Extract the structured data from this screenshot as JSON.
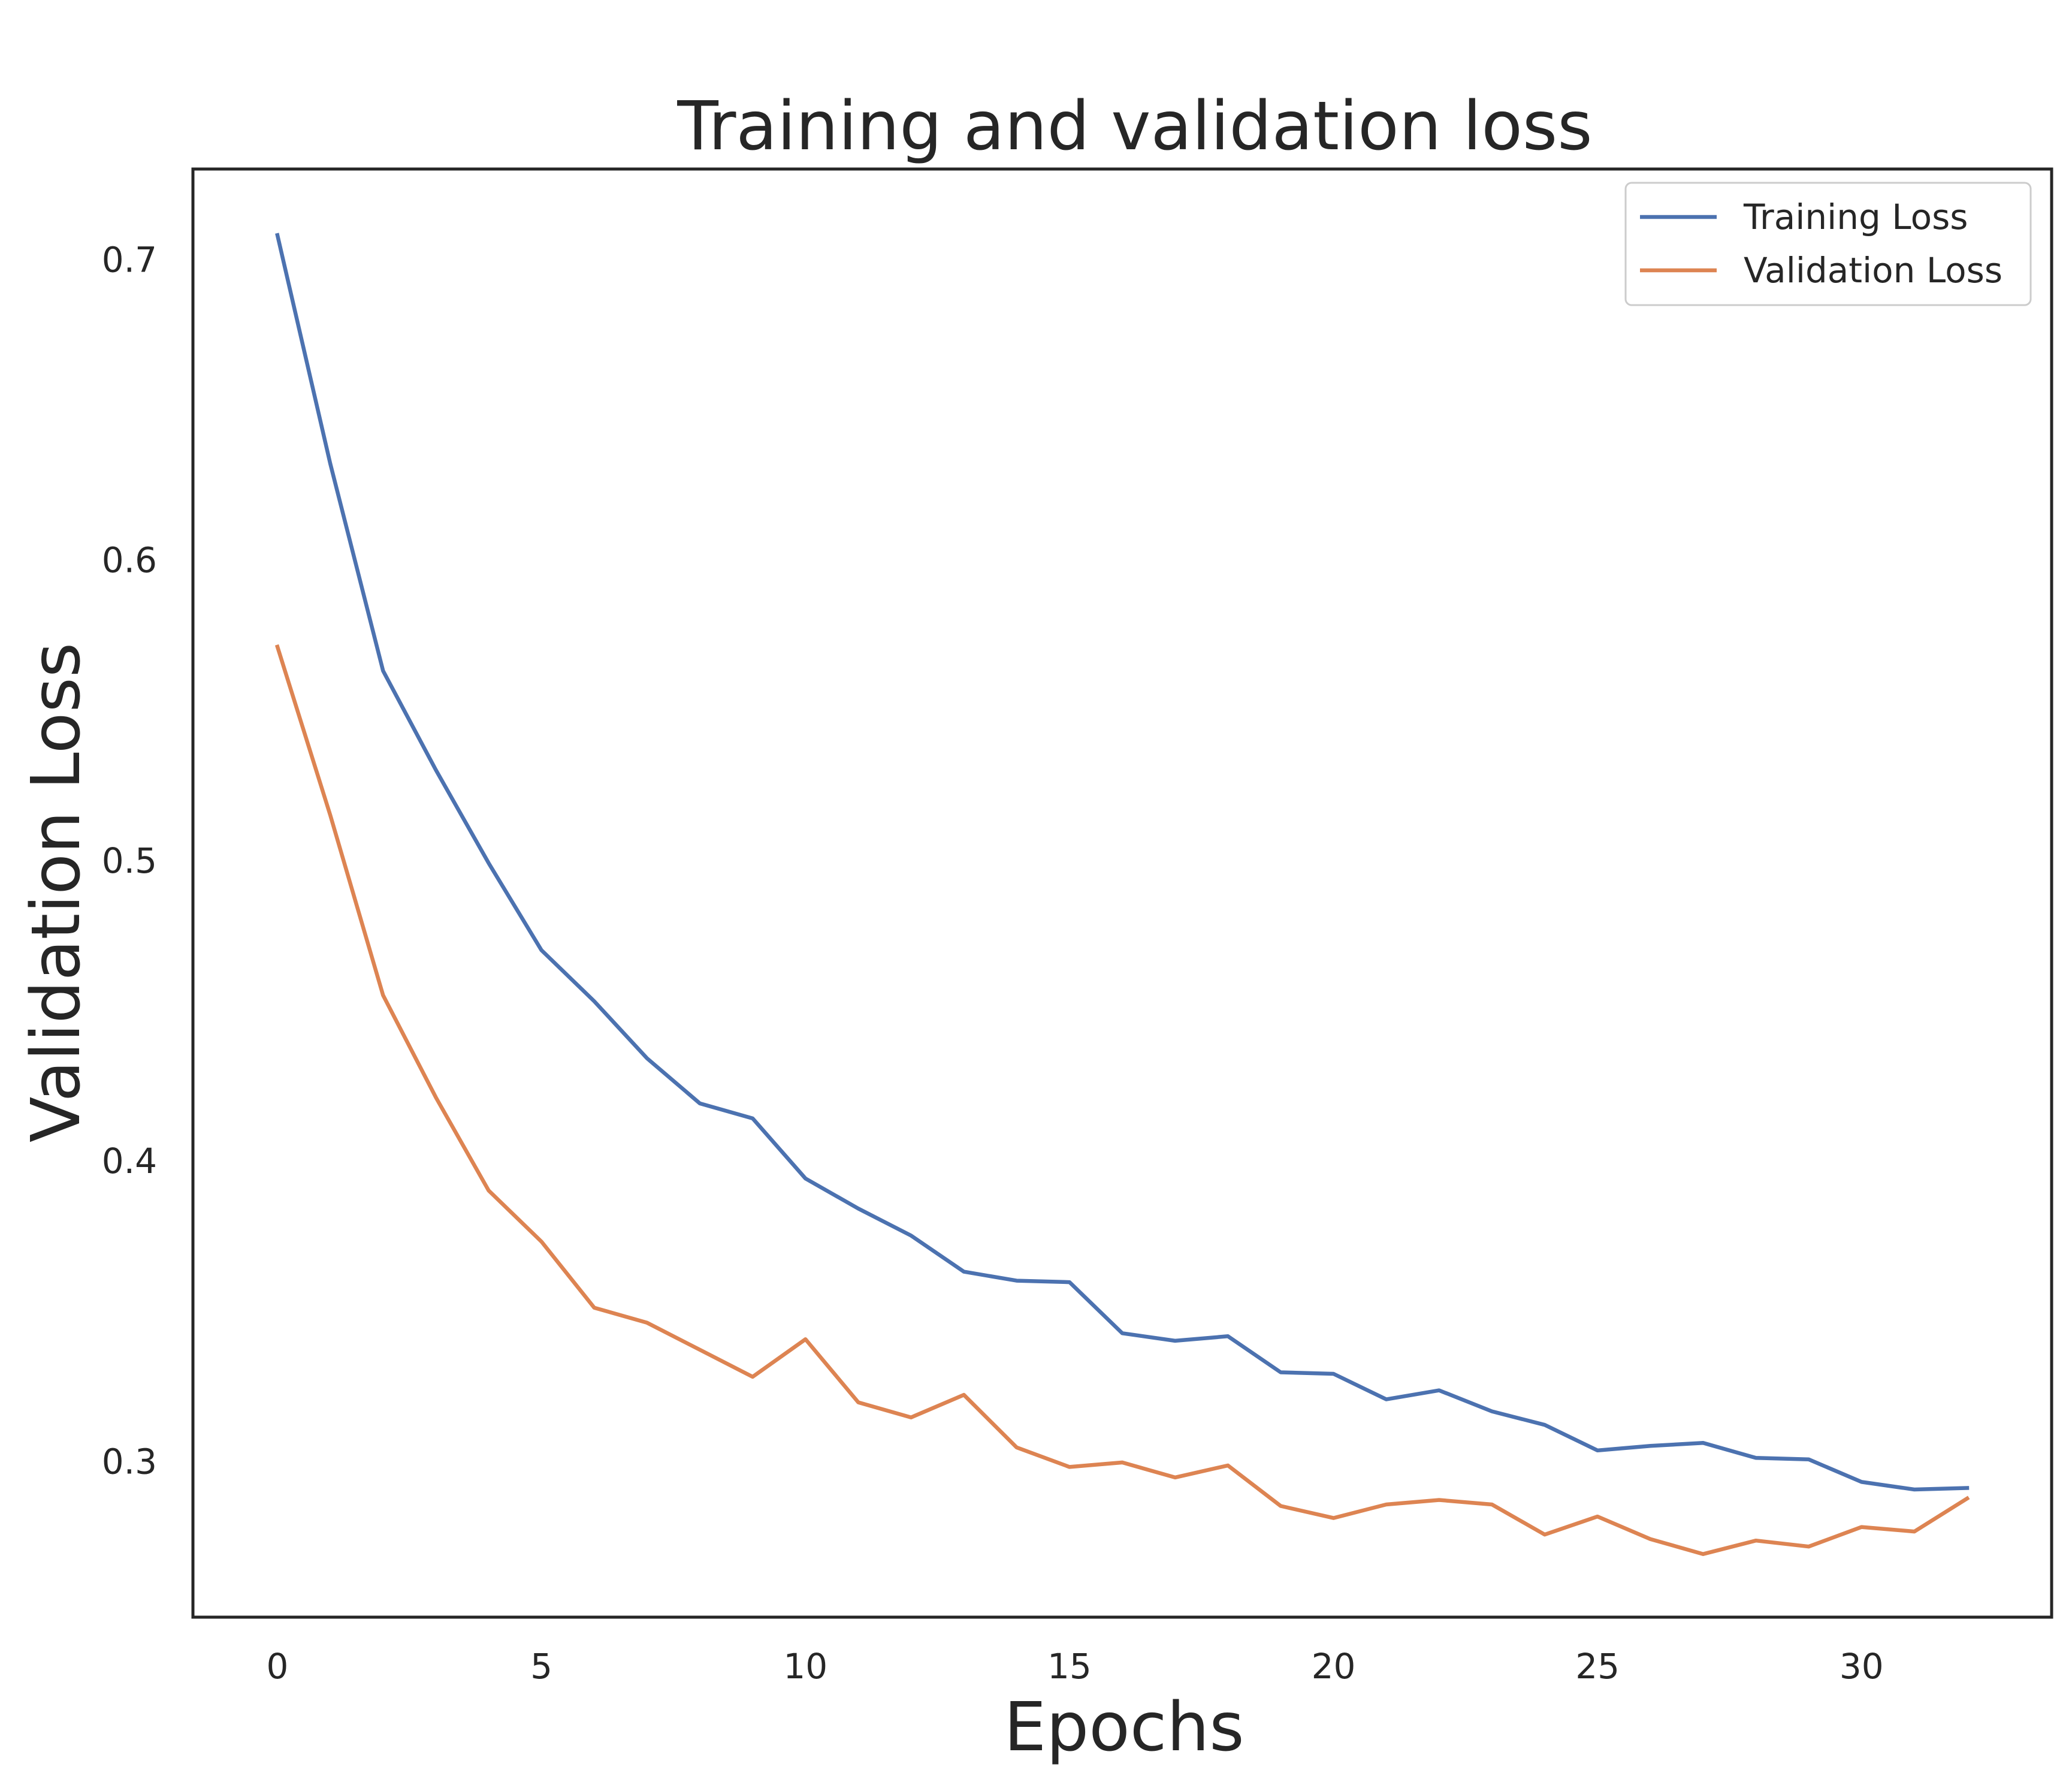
{
  "chart_data": {
    "type": "line",
    "title": "Training and validation loss",
    "xlabel": "Epochs",
    "ylabel": "Validation Loss",
    "xlim": [
      -1.6,
      33.6
    ],
    "ylim": [
      0.248,
      0.73
    ],
    "xticks": [
      0,
      5,
      10,
      15,
      20,
      25,
      30
    ],
    "xtick_labels": [
      "0",
      "5",
      "10",
      "15",
      "20",
      "25",
      "30"
    ],
    "yticks": [
      0.3,
      0.4,
      0.5,
      0.6,
      0.7
    ],
    "ytick_labels": [
      "0.3",
      "0.4",
      "0.5",
      "0.6",
      "0.7"
    ],
    "grid": false,
    "legend_position": "top-right",
    "x": [
      0,
      1,
      2,
      3,
      4,
      5,
      6,
      7,
      8,
      9,
      10,
      11,
      12,
      13,
      14,
      15,
      16,
      17,
      18,
      19,
      20,
      21,
      22,
      23,
      24,
      25,
      26,
      27,
      28,
      29,
      30,
      31,
      32
    ],
    "series": [
      {
        "name": "Training Loss",
        "color": "#4c72b0",
        "values": [
          0.708,
          0.632,
          0.563,
          0.53,
          0.499,
          0.47,
          0.453,
          0.434,
          0.419,
          0.414,
          0.394,
          0.384,
          0.375,
          0.363,
          0.36,
          0.3595,
          0.3425,
          0.34,
          0.3415,
          0.3295,
          0.329,
          0.3205,
          0.3235,
          0.3165,
          0.312,
          0.3035,
          0.305,
          0.306,
          0.301,
          0.3005,
          0.293,
          0.2905,
          0.291
        ]
      },
      {
        "name": "Validation Loss",
        "color": "#dd8452",
        "values": [
          0.571,
          0.515,
          0.455,
          0.421,
          0.39,
          0.373,
          0.351,
          0.346,
          0.337,
          0.328,
          0.3405,
          0.3195,
          0.3145,
          0.322,
          0.3045,
          0.298,
          0.2995,
          0.2945,
          0.2985,
          0.285,
          0.281,
          0.2855,
          0.287,
          0.2855,
          0.2755,
          0.2815,
          0.274,
          0.269,
          0.2735,
          0.2715,
          0.278,
          0.2765,
          0.2875
        ]
      }
    ]
  }
}
